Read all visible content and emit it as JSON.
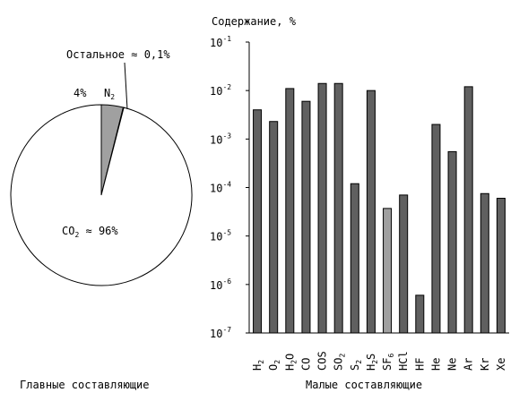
{
  "chart_data": [
    {
      "type": "pie",
      "title": "",
      "xlabel": "Главные составляющие",
      "slices": [
        {
          "value": 96,
          "label": "CO₂ ≈ 96%",
          "color": "#ffffff"
        },
        {
          "value": 3.9,
          "label": "4% N₂",
          "color": "#a0a0a0"
        },
        {
          "value": 0.1,
          "label": "Остальное ≈ 0,1%",
          "color": "#606060"
        }
      ],
      "labels": {
        "co2": "CO₂ ≈ 96%",
        "n2_pct": "4%",
        "n2": "N₂",
        "rest": "Остальное ≈ 0,1%"
      }
    },
    {
      "type": "bar",
      "title": "",
      "ylabel": "Содержание, %",
      "xlabel": "Малые составляющие",
      "yscale": "log",
      "ylim": [
        1e-07,
        0.1
      ],
      "yticks": [
        {
          "value": 1e-07,
          "base": "10",
          "exp": "-7"
        },
        {
          "value": 1e-06,
          "base": "10",
          "exp": "-6"
        },
        {
          "value": 1e-05,
          "base": "10",
          "exp": "-5"
        },
        {
          "value": 0.0001,
          "base": "10",
          "exp": "-4"
        },
        {
          "value": 0.001,
          "base": "10",
          "exp": "-3"
        },
        {
          "value": 0.01,
          "base": "10",
          "exp": "-2"
        },
        {
          "value": 0.1,
          "base": "10",
          "exp": "-1"
        }
      ],
      "categories": [
        {
          "name": "H2",
          "base": "H",
          "sub": "2"
        },
        {
          "name": "O2",
          "base": "O",
          "sub": "2"
        },
        {
          "name": "H2O",
          "parts": [
            [
              "H",
              ""
            ],
            [
              "2",
              "sub"
            ],
            [
              "O",
              ""
            ]
          ]
        },
        {
          "name": "CO",
          "base": "CO",
          "sub": ""
        },
        {
          "name": "COS",
          "base": "COS",
          "sub": ""
        },
        {
          "name": "SO2",
          "base": "SO",
          "sub": "2"
        },
        {
          "name": "S2",
          "base": "S",
          "sub": "2"
        },
        {
          "name": "H2S",
          "parts": [
            [
              "H",
              ""
            ],
            [
              "2",
              "sub"
            ],
            [
              "S",
              ""
            ]
          ]
        },
        {
          "name": "SF6",
          "base": "SF",
          "sub": "6"
        },
        {
          "name": "HCl",
          "base": "HCl",
          "sub": ""
        },
        {
          "name": "HF",
          "base": "HF",
          "sub": ""
        },
        {
          "name": "He",
          "base": "He",
          "sub": ""
        },
        {
          "name": "Ne",
          "base": "Ne",
          "sub": ""
        },
        {
          "name": "Ar",
          "base": "Ar",
          "sub": ""
        },
        {
          "name": "Kr",
          "base": "Kr",
          "sub": ""
        },
        {
          "name": "Xe",
          "base": "Xe",
          "sub": ""
        }
      ],
      "values": [
        0.004,
        0.0023,
        0.011,
        0.006,
        0.014,
        0.014,
        0.00012,
        0.01,
        3.7e-05,
        7e-05,
        6e-07,
        0.002,
        0.00055,
        0.012,
        7.5e-05,
        6e-05
      ],
      "colors": [
        "#606060",
        "#606060",
        "#606060",
        "#606060",
        "#606060",
        "#606060",
        "#606060",
        "#606060",
        "#a0a0a0",
        "#606060",
        "#606060",
        "#606060",
        "#606060",
        "#606060",
        "#606060",
        "#606060"
      ]
    }
  ]
}
